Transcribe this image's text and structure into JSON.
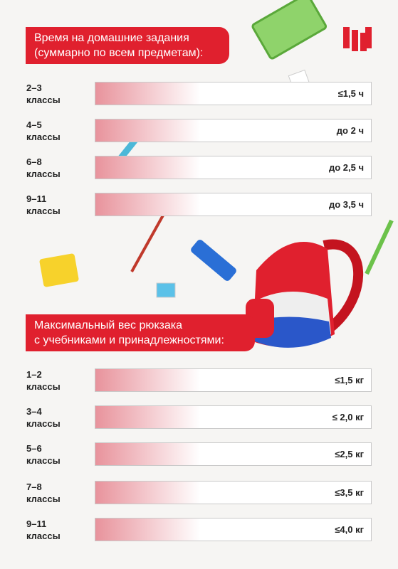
{
  "sections": [
    {
      "title": [
        "Время на домашние задания",
        "(суммарно по всем предметам):"
      ],
      "rows": [
        {
          "grade": [
            "2–3",
            "классы"
          ],
          "limit": "≤1,5 ч"
        },
        {
          "grade": [
            "4–5",
            "классы"
          ],
          "limit": "до 2 ч"
        },
        {
          "grade": [
            "6–8",
            "классы"
          ],
          "limit": "до 2,5 ч"
        },
        {
          "grade": [
            "9–11",
            "классы"
          ],
          "limit": "до 3,5 ч"
        }
      ]
    },
    {
      "title": [
        "Максимальный вес рюкзака",
        "с учебниками и принадлежностями:"
      ],
      "rows": [
        {
          "grade": [
            "1–2",
            "классы"
          ],
          "limit": "≤1,5 кг"
        },
        {
          "grade": [
            "3–4",
            "классы"
          ],
          "limit": "≤ 2,0 кг"
        },
        {
          "grade": [
            "5–6",
            "классы"
          ],
          "limit": "≤2,5 кг"
        },
        {
          "grade": [
            "7–8",
            "классы"
          ],
          "limit": "≤3,5 кг"
        },
        {
          "grade": [
            "9–11",
            "классы"
          ],
          "limit": "≤4,0 кг"
        }
      ]
    }
  ]
}
